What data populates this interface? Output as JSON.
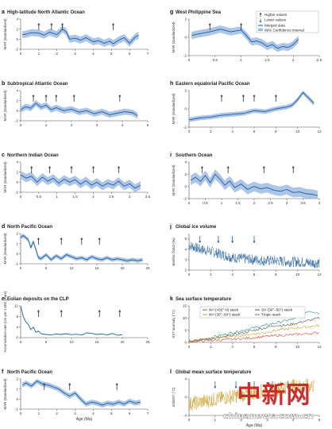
{
  "colors": {
    "line": "#1f5f9e",
    "band": "#9fbbe3",
    "axis": "#555555",
    "jline": "#1e5d96",
    "k_nh50": "#1f8f8a",
    "k_sh": "#555555",
    "k_nh30": "#d99a2b",
    "k_tropic": "#d64b3b",
    "l_line": "#c89a1e",
    "arrow_up": "#333333",
    "arrow_down": "#1f5f9e",
    "watermark": "#c81e1e",
    "watermark_text": "#ffffff"
  },
  "legend_g": {
    "higher": "Higher values",
    "lower": "Lower values",
    "merged": "Merged data",
    "ci": "99% Confidence interval"
  },
  "legend_k": {
    "nh50": "NH (>50° N) stack",
    "sh": "SH (30°–50°) stack",
    "nh30": "NH (30°–50°) stack",
    "tropic": "Tropic stack"
  },
  "watermark": {
    "main": "中新网",
    "sub": "chinanews.com.cn"
  },
  "chart_data": [
    {
      "id": "a",
      "type": "line",
      "title": "High-latitude North Atlantic Ocean",
      "ylabel": "MAR (standardized)",
      "xlabel": "",
      "xlim": [
        0,
        7
      ],
      "ylim": [
        -2,
        4
      ],
      "xticks": [
        0,
        1,
        2,
        3,
        4,
        5,
        6,
        7
      ],
      "yticks": [
        -2,
        0,
        2,
        4
      ],
      "series": [
        {
          "x": [
            0.1,
            0.3,
            0.6,
            1.0,
            1.3,
            1.6,
            2.0,
            2.3,
            2.5,
            2.7,
            3.0,
            3.3,
            3.6,
            4.0,
            4.3,
            4.6,
            4.9,
            5.1,
            5.4,
            5.7,
            6.0,
            6.3,
            6.5
          ],
          "y": [
            0.9,
            1.0,
            1.3,
            1.2,
            0.8,
            1.4,
            0.9,
            2.0,
            1.5,
            0.0,
            0.2,
            -0.2,
            0.3,
            -0.5,
            -0.3,
            -0.8,
            -0.4,
            -0.9,
            -0.2,
            0.3,
            -0.8,
            0.4,
            0.8
          ],
          "band": 0.7
        }
      ],
      "arrows_up": [
        1.0,
        1.7,
        2.3,
        5.1
      ],
      "arrows_down": []
    },
    {
      "id": "b",
      "type": "line",
      "title": "Subtropical Atlantic Ocean",
      "ylabel": "MAR (standardized)",
      "xlabel": "",
      "xlim": [
        0,
        5
      ],
      "ylim": [
        -2,
        4
      ],
      "xticks": [
        0,
        1,
        2,
        3,
        4,
        5
      ],
      "yticks": [
        -2,
        0,
        2,
        4
      ],
      "series": [
        {
          "x": [
            0.0,
            0.2,
            0.4,
            0.6,
            0.8,
            1.0,
            1.2,
            1.4,
            1.7,
            2.0,
            2.3,
            2.6,
            2.9,
            3.2,
            3.5,
            3.8,
            4.1,
            4.4,
            4.6
          ],
          "y": [
            0.2,
            0.8,
            0.5,
            1.5,
            0.7,
            1.1,
            0.2,
            0.6,
            0.0,
            0.3,
            -0.3,
            0.0,
            -0.6,
            -0.2,
            -0.8,
            -0.5,
            -0.2,
            -0.4,
            -1.0
          ],
          "band": 0.6
        }
      ],
      "arrows_up": [
        0.5,
        1.0,
        1.4,
        2.1,
        3.9
      ],
      "arrows_down": []
    },
    {
      "id": "c",
      "type": "line",
      "title": "Northern Indian Ocean",
      "ylabel": "MAR (standardized)",
      "xlabel": "",
      "xlim": [
        0,
        3.5
      ],
      "ylim": [
        -2,
        4
      ],
      "xticks": [
        0,
        0.5,
        1,
        1.5,
        2,
        2.5,
        3,
        3.5
      ],
      "yticks": [
        -2,
        0,
        2,
        4
      ],
      "series": [
        {
          "x": [
            0.0,
            0.15,
            0.3,
            0.45,
            0.6,
            0.75,
            0.9,
            1.05,
            1.2,
            1.35,
            1.5,
            1.65,
            1.8,
            1.95,
            2.1,
            2.25,
            2.4,
            2.55,
            2.7,
            2.85,
            3.0,
            3.15,
            3.3
          ],
          "y": [
            1.5,
            0.8,
            1.2,
            0.0,
            1.0,
            0.2,
            0.8,
            -0.2,
            0.6,
            0.0,
            0.5,
            -0.4,
            0.3,
            -0.6,
            0.0,
            -0.8,
            -0.2,
            -0.6,
            0.2,
            -0.8,
            -0.3,
            -1.2,
            -0.6
          ],
          "band": 0.8
        }
      ],
      "arrows_up": [
        0.3,
        0.8,
        1.4,
        2.0,
        2.7
      ],
      "arrows_down": []
    },
    {
      "id": "d",
      "type": "line",
      "title": "North Pacific Ocean",
      "ylabel": "MAR (standardized)",
      "xlabel": "",
      "xlim": [
        0,
        25
      ],
      "ylim": [
        -1,
        2
      ],
      "xticks": [
        0,
        5,
        10,
        15,
        20,
        25
      ],
      "yticks": [
        -1,
        0,
        1,
        2
      ],
      "series": [
        {
          "x": [
            0,
            0.5,
            1,
            1.5,
            2,
            2.5,
            3,
            3.5,
            4,
            5,
            6,
            7,
            8,
            9,
            10,
            11,
            12,
            13,
            14,
            15,
            16,
            17,
            18,
            19,
            20,
            21,
            22,
            23,
            24
          ],
          "y": [
            1.6,
            1.8,
            1.6,
            1.4,
            0.6,
            1.2,
            0.4,
            -0.4,
            -0.5,
            -0.1,
            -0.6,
            -0.2,
            -0.5,
            -0.1,
            -0.3,
            -0.5,
            -0.4,
            -0.6,
            -0.3,
            -0.5,
            -0.6,
            -0.4,
            -0.6,
            -0.5,
            -0.6,
            -0.7,
            -0.6,
            -0.7,
            -0.6
          ],
          "band": 0.2
        }
      ],
      "arrows_up": [
        3.5,
        8.0,
        12.0,
        15.5
      ],
      "arrows_down": []
    },
    {
      "id": "e",
      "type": "line",
      "title": "Eolian deposits on the CLP",
      "ylabel": "Accumulation rate (cm per 1,000 years)",
      "xlabel": "",
      "xlim": [
        0,
        25
      ],
      "ylim": [
        0,
        12
      ],
      "xticks": [
        0,
        5,
        10,
        15,
        20,
        25
      ],
      "yticks": [
        0,
        4,
        8,
        12
      ],
      "series": [
        {
          "x": [
            0,
            0.5,
            1,
            1.5,
            2,
            2.5,
            3,
            3.5,
            4,
            5,
            6,
            7,
            8,
            9,
            10,
            11,
            12,
            13,
            14,
            15,
            16,
            17,
            18,
            19,
            20
          ],
          "y": [
            12,
            8,
            6,
            5,
            3,
            4,
            2,
            2.5,
            1.5,
            1.2,
            1.0,
            1.4,
            1.2,
            1.5,
            1.1,
            1.3,
            1.0,
            1.8,
            1.6,
            1.2,
            1.4,
            1.0,
            1.6,
            0.9,
            1.1
          ],
          "band": 0
        }
      ],
      "arrows_up": [
        3.5,
        8.0,
        15.5,
        19.5
      ],
      "arrows_down": []
    },
    {
      "id": "f",
      "type": "line",
      "title": "North Pacific Ocean",
      "ylabel": "MAR (standardized)",
      "xlabel": "Age (Ma)",
      "xlim": [
        0,
        7
      ],
      "ylim": [
        -1,
        2
      ],
      "xticks": [
        0,
        1,
        2,
        3,
        4,
        5,
        6,
        7
      ],
      "yticks": [
        -1,
        0,
        1,
        2
      ],
      "series": [
        {
          "x": [
            0.1,
            0.3,
            0.6,
            0.9,
            1.2,
            1.5,
            1.8,
            2.1,
            2.4,
            2.7,
            3.0,
            3.3,
            3.6,
            3.9,
            4.2,
            4.5,
            4.8,
            5.1,
            5.4,
            5.7,
            6.0,
            6.3,
            6.6
          ],
          "y": [
            1.4,
            1.6,
            1.3,
            1.8,
            1.5,
            1.4,
            1.2,
            1.0,
            0.6,
            0.3,
            0.6,
            0.0,
            -0.5,
            -0.3,
            -0.4,
            -0.6,
            -0.4,
            -0.5,
            -0.3,
            -0.5,
            -0.2,
            -0.4,
            -0.3
          ],
          "band": 0.25
        }
      ],
      "arrows_up": [
        1.3,
        2.7,
        5.3
      ],
      "arrows_down": []
    },
    {
      "id": "g",
      "type": "line",
      "title": "West Philippine Sea",
      "ylabel": "MAR (standardized)",
      "xlabel": "",
      "xlim": [
        0,
        2.5
      ],
      "ylim": [
        -2,
        2
      ],
      "xticks": [
        0,
        0.5,
        1,
        1.5,
        2,
        2.5
      ],
      "yticks": [
        -2,
        0,
        2
      ],
      "series": [
        {
          "x": [
            0.05,
            0.2,
            0.4,
            0.6,
            0.8,
            1.0,
            1.1,
            1.2,
            1.3,
            1.4,
            1.5,
            1.6,
            1.7,
            1.8,
            1.9,
            2.0,
            2.1
          ],
          "y": [
            0.2,
            0.4,
            0.6,
            0.9,
            0.6,
            0.8,
            0.2,
            -0.5,
            -0.4,
            -0.6,
            -1.0,
            -0.8,
            -1.2,
            -1.0,
            -1.1,
            -0.8,
            -0.2
          ],
          "band": 0.4
        }
      ],
      "arrows_up": [
        0.4,
        1.0,
        1.5
      ],
      "arrows_down": []
    },
    {
      "id": "h",
      "type": "line",
      "title": "Eastern equatorial Pacific Ocean",
      "ylabel": "MAR (standardized)",
      "xlabel": "",
      "xlim": [
        0,
        12
      ],
      "ylim": [
        -2,
        2
      ],
      "xticks": [
        0,
        2,
        4,
        6,
        8,
        10,
        12
      ],
      "yticks": [
        -2,
        0,
        2
      ],
      "series": [
        {
          "x": [
            0,
            1,
            2,
            3,
            4,
            5,
            6,
            7,
            8,
            9,
            9.5,
            10,
            10.5,
            11,
            11.5
          ],
          "y": [
            -1.2,
            -1.0,
            -0.9,
            -0.7,
            -0.6,
            -0.5,
            -0.2,
            -0.3,
            0.0,
            0.2,
            0.4,
            1.0,
            1.8,
            1.2,
            0.6
          ],
          "band": 0.25
        }
      ],
      "arrows_up": [
        3.0,
        5.0,
        6.0,
        8.0
      ],
      "arrows_down": []
    },
    {
      "id": "i",
      "type": "line",
      "title": "Southern Ocean",
      "ylabel": "MAR (standardized)",
      "xlabel": "",
      "xlim": [
        0,
        4
      ],
      "ylim": [
        -2,
        4
      ],
      "xticks": [
        0,
        0.5,
        1,
        1.5,
        2,
        2.5,
        3,
        3.5,
        4
      ],
      "yticks": [
        -2,
        0,
        2,
        4
      ],
      "series": [
        {
          "x": [
            0.05,
            0.2,
            0.35,
            0.5,
            0.65,
            0.8,
            0.95,
            1.1,
            1.25,
            1.4,
            1.6,
            1.8,
            2.0,
            2.2,
            2.4,
            2.6,
            2.8,
            3.0,
            3.2,
            3.4,
            3.6,
            3.8,
            3.95
          ],
          "y": [
            1.0,
            1.5,
            0.8,
            1.8,
            0.6,
            2.0,
            1.2,
            0.2,
            0.9,
            -0.2,
            0.4,
            -0.5,
            0.0,
            -0.4,
            -0.2,
            -0.6,
            -0.8,
            -0.5,
            -1.0,
            -0.9,
            -1.2,
            -1.3,
            -1.5
          ],
          "band": 0.8
        }
      ],
      "arrows_up": [
        0.4,
        1.2,
        2.3,
        3.2
      ],
      "arrows_down": []
    },
    {
      "id": "j",
      "type": "line",
      "title": "Global ice volume",
      "ylabel": "Benthic δ18O (‰)",
      "xlabel": "",
      "xlim": [
        0,
        12
      ],
      "ylim": [
        2,
        5.5
      ],
      "xticks": [
        0,
        2,
        4,
        6,
        8,
        10,
        12
      ],
      "yticks": [
        2,
        3,
        4,
        5
      ],
      "series": [
        {
          "x": [
            0,
            1,
            2,
            3,
            4,
            5,
            6,
            7,
            8,
            9,
            10,
            11,
            12
          ],
          "y": [
            4.4,
            4.0,
            3.8,
            3.5,
            3.2,
            3.1,
            3.0,
            2.9,
            2.9,
            2.8,
            2.8,
            2.7,
            2.7
          ],
          "band": 0.5
        }
      ],
      "arrows_up": [],
      "arrows_down": [
        1.0,
        2.7,
        4.0,
        6.0
      ]
    },
    {
      "id": "k",
      "type": "line",
      "title": "Sea surface temperature",
      "ylabel": "SST anomaly (°C)",
      "xlabel": "",
      "xlim": [
        0,
        12
      ],
      "ylim": [
        0,
        15
      ],
      "xticks": [
        0,
        2,
        4,
        6,
        8,
        10,
        12
      ],
      "yticks": [
        0,
        5,
        10,
        15
      ],
      "series": [
        {
          "name": "NH (>50° N) stack",
          "x": [
            0,
            1,
            2,
            3,
            4,
            5,
            6,
            7,
            8,
            9,
            10,
            11,
            12
          ],
          "y": [
            0.5,
            1,
            2,
            3,
            4,
            5,
            6,
            7,
            8,
            9,
            10,
            13,
            12
          ],
          "band": 0
        },
        {
          "name": "SH (30°–50°) stack",
          "x": [
            0,
            1,
            2,
            3,
            4,
            5,
            6,
            7,
            8,
            9,
            10,
            11,
            12
          ],
          "y": [
            0.5,
            1,
            1.5,
            2,
            3,
            4,
            5,
            6,
            7,
            7,
            8,
            9,
            10
          ],
          "band": 0
        },
        {
          "name": "NH (30°–50°) stack",
          "x": [
            0,
            1,
            2,
            3,
            4,
            5,
            6,
            7,
            8,
            9,
            10,
            11,
            12
          ],
          "y": [
            0.5,
            1,
            1.5,
            2,
            2.5,
            3,
            3.5,
            4,
            5,
            5.5,
            6,
            6.5,
            7
          ],
          "band": 0
        },
        {
          "name": "Tropic stack",
          "x": [
            0,
            1,
            2,
            3,
            4,
            5,
            6,
            7,
            8,
            9,
            10,
            11,
            12
          ],
          "y": [
            0.3,
            0.5,
            0.8,
            1,
            1.3,
            1.6,
            2,
            2.4,
            2.8,
            3,
            3.3,
            3.6,
            4
          ],
          "band": 0
        }
      ],
      "arrows_up": [],
      "arrows_down": []
    },
    {
      "id": "l",
      "type": "line",
      "title": "Global mean surface temperature",
      "ylabel": "ΔGMST (°C)",
      "xlabel": "Age (Ma)",
      "xlim": [
        0,
        5
      ],
      "ylim": [
        -4,
        4
      ],
      "xticks": [
        0,
        1,
        2,
        3,
        4,
        5
      ],
      "yticks": [
        -4,
        0,
        4
      ],
      "series": [
        {
          "x": [
            0,
            0.5,
            1,
            1.5,
            2,
            2.5,
            3,
            3.5,
            4,
            4.5,
            4.8
          ],
          "y": [
            -1.5,
            -1.0,
            -0.5,
            0.0,
            0.5,
            1.0,
            1.5,
            2.0,
            2.5,
            2.5,
            2.5
          ],
          "band": 1.6
        }
      ],
      "arrows_up": [],
      "arrows_down": [
        1.0,
        1.8,
        2.5,
        3.2,
        3.8
      ]
    }
  ]
}
